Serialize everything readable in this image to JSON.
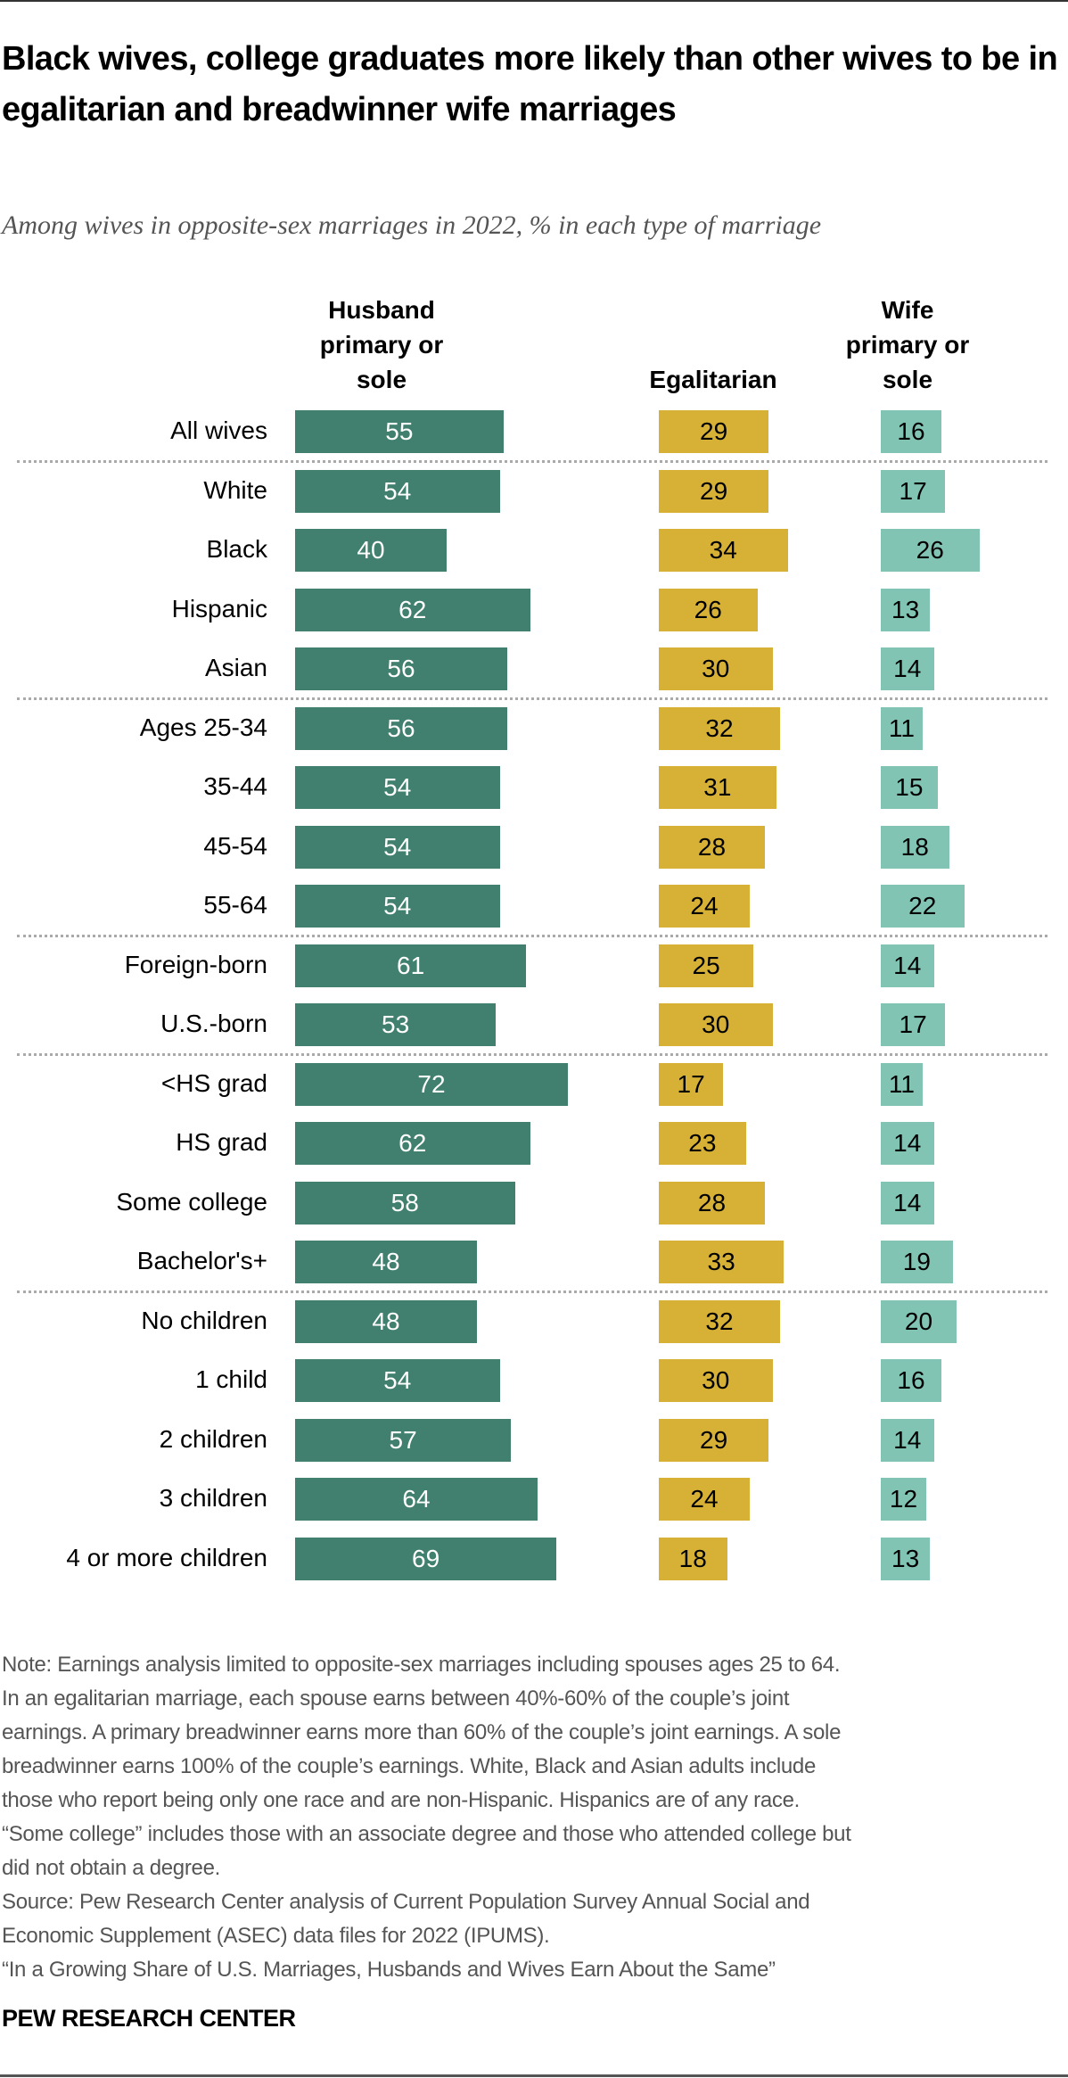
{
  "title": "Black wives, college graduates more likely than other wives to be in egalitarian and breadwinner wife marriages",
  "subtitle": "Among wives in opposite-sex marriages in 2022, % in each type of marriage",
  "chart_data": {
    "type": "bar",
    "orientation": "horizontal",
    "layout": "side-by-side columns",
    "series": [
      {
        "name": "Husband primary or sole",
        "color": "#41806F",
        "values": [
          55,
          54,
          40,
          62,
          56,
          56,
          54,
          54,
          54,
          61,
          53,
          72,
          62,
          58,
          48,
          48,
          54,
          57,
          64,
          69
        ]
      },
      {
        "name": "Egalitarian",
        "color": "#D7B136",
        "values": [
          29,
          29,
          34,
          26,
          30,
          32,
          31,
          28,
          24,
          25,
          30,
          17,
          23,
          28,
          33,
          32,
          30,
          29,
          24,
          18
        ]
      },
      {
        "name": "Wife primary or sole",
        "color": "#82C4B4",
        "values": [
          16,
          17,
          26,
          13,
          14,
          11,
          15,
          18,
          22,
          14,
          17,
          11,
          14,
          14,
          19,
          20,
          16,
          14,
          12,
          13
        ]
      }
    ],
    "series_header_lines": [
      [
        "Husband",
        "primary or",
        "sole"
      ],
      [
        "Egalitarian"
      ],
      [
        "Wife",
        "primary or",
        "sole"
      ]
    ],
    "categories": [
      "All wives",
      "White",
      "Black",
      "Hispanic",
      "Asian",
      "Ages 25-34",
      "35-44",
      "45-54",
      "55-64",
      "Foreign-born",
      "U.S.-born",
      "<HS grad",
      "HS grad",
      "Some college",
      "Bachelor's+",
      "No children",
      "1 child",
      "2 children",
      "3 children",
      "4 or more children"
    ],
    "group_dividers_after": [
      0,
      4,
      8,
      10,
      14
    ],
    "data_labels": true,
    "grid": false
  },
  "notes": [
    "Note: Earnings analysis limited to opposite-sex marriages including spouses ages 25 to 64.",
    "In an egalitarian marriage, each spouse earns between 40%-60% of the couple’s joint",
    "earnings. A primary breadwinner earns more than 60% of the couple’s joint earnings. A sole",
    "breadwinner earns 100% of the couple’s earnings. White, Black and Asian adults include",
    "those who report being only one race and are non-Hispanic. Hispanics are of any race.",
    "“Some college” includes those with an associate degree and those who attended college but",
    "did not obtain a degree.",
    "Source: Pew Research Center analysis of Current Population Survey Annual Social and",
    "Economic Supplement (ASEC) data files for 2022 (IPUMS).",
    "“In a Growing Share of U.S. Marriages, Husbands and Wives Earn About the Same”"
  ],
  "brand": "PEW RESEARCH CENTER"
}
